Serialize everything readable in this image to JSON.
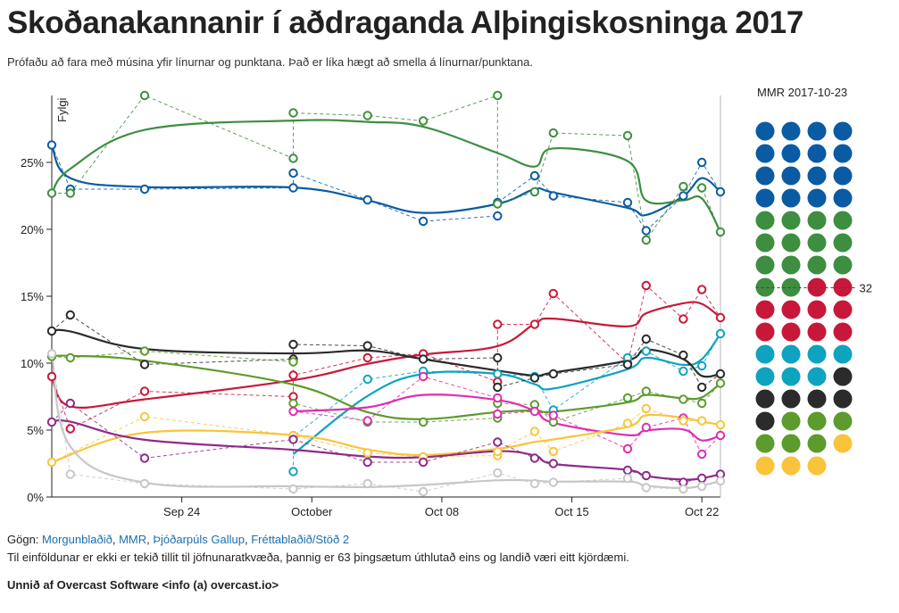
{
  "title": "Skoðanakannanir í aðdraganda Alþingiskosninga 2017",
  "subtitle": "Prófaðu að fara með músina yfir línurnar og punktana. Það er líka hægt að smella á línurnar/punktana.",
  "footer": {
    "sources_prefix": "Gögn:",
    "sources": [
      "Morgunblaðið",
      "MMR",
      "Þjóðarpúls Gallup",
      "Fréttablaðið/Stöð 2"
    ],
    "note": "Til einföldunar er ekki er tekið tillit til jöfnunaratkvæða, þannig er 63 þingsætum úthlutað eins og landið væri eitt kjördæmi.",
    "credit": "Unnið af Overcast Software <info (a) overcast.io>"
  },
  "seats_panel": {
    "label": "MMR 2017-10-23",
    "majority_label": "32",
    "seats": [
      {
        "color": "#0a5ba3",
        "count": 16
      },
      {
        "color": "#3e8e41",
        "count": 14
      },
      {
        "color": "#c8183a",
        "count": 10
      },
      {
        "color": "#0ea3bf",
        "count": 7
      },
      {
        "color": "#2b2b2b",
        "count": 6
      },
      {
        "color": "#5d9b2c",
        "count": 6
      },
      {
        "color": "#f9c43c",
        "count": 4
      }
    ]
  },
  "chart_data": {
    "type": "line",
    "title": "",
    "ylabel": "Fylgi",
    "xlabel": "",
    "ylim": [
      0,
      30
    ],
    "xlim": [
      "2017-09-17",
      "2017-10-23"
    ],
    "yticks": [
      "0%",
      "5%",
      "10%",
      "15%",
      "20%",
      "25%"
    ],
    "xticks": [
      "Sep 24",
      "October",
      "Oct 08",
      "Oct 15",
      "Oct 22"
    ],
    "marker_date": "2017-10-23",
    "series": [
      {
        "color": "#0a5ba3",
        "points": [
          [
            "2017-09-17",
            26.3
          ],
          [
            "2017-09-18",
            23.0
          ],
          [
            "2017-09-22",
            23.0
          ],
          [
            "2017-09-30",
            23.1
          ],
          [
            "2017-09-30",
            24.2
          ],
          [
            "2017-10-04",
            22.2
          ],
          [
            "2017-10-07",
            20.6
          ],
          [
            "2017-10-11",
            21.0
          ],
          [
            "2017-10-11",
            22.0
          ],
          [
            "2017-10-13",
            24.0
          ],
          [
            "2017-10-14",
            22.5
          ],
          [
            "2017-10-18",
            22.0
          ],
          [
            "2017-10-19",
            19.9
          ],
          [
            "2017-10-21",
            22.5
          ],
          [
            "2017-10-22",
            25.0
          ],
          [
            "2017-10-23",
            22.8
          ]
        ]
      },
      {
        "color": "#3e8e41",
        "points": [
          [
            "2017-09-17",
            22.7
          ],
          [
            "2017-09-18",
            22.7
          ],
          [
            "2017-09-22",
            30.0
          ],
          [
            "2017-09-30",
            25.3
          ],
          [
            "2017-09-30",
            28.7
          ],
          [
            "2017-10-04",
            28.5
          ],
          [
            "2017-10-07",
            28.1
          ],
          [
            "2017-10-11",
            30.0
          ],
          [
            "2017-10-11",
            21.9
          ],
          [
            "2017-10-13",
            22.8
          ],
          [
            "2017-10-14",
            27.2
          ],
          [
            "2017-10-18",
            27.0
          ],
          [
            "2017-10-19",
            19.2
          ],
          [
            "2017-10-21",
            23.2
          ],
          [
            "2017-10-22",
            23.1
          ],
          [
            "2017-10-23",
            19.8
          ]
        ]
      },
      {
        "color": "#c8183a",
        "points": [
          [
            "2017-09-17",
            9.0
          ],
          [
            "2017-09-18",
            5.1
          ],
          [
            "2017-09-22",
            7.9
          ],
          [
            "2017-09-30",
            7.5
          ],
          [
            "2017-09-30",
            9.1
          ],
          [
            "2017-10-04",
            10.4
          ],
          [
            "2017-10-07",
            10.7
          ],
          [
            "2017-10-11",
            8.6
          ],
          [
            "2017-10-11",
            12.9
          ],
          [
            "2017-10-13",
            12.9
          ],
          [
            "2017-10-14",
            15.2
          ],
          [
            "2017-10-18",
            10.0
          ],
          [
            "2017-10-19",
            15.8
          ],
          [
            "2017-10-21",
            13.3
          ],
          [
            "2017-10-22",
            15.5
          ],
          [
            "2017-10-23",
            13.4
          ]
        ]
      },
      {
        "color": "#0ea3bf",
        "points": [
          [
            "2017-09-30",
            1.9
          ],
          [
            "2017-09-30",
            4.5
          ],
          [
            "2017-10-04",
            8.8
          ],
          [
            "2017-10-07",
            9.4
          ],
          [
            "2017-10-11",
            9.2
          ],
          [
            "2017-10-13",
            9.0
          ],
          [
            "2017-10-14",
            6.5
          ],
          [
            "2017-10-18",
            10.4
          ],
          [
            "2017-10-19",
            10.9
          ],
          [
            "2017-10-21",
            9.4
          ],
          [
            "2017-10-22",
            9.8
          ],
          [
            "2017-10-23",
            12.2
          ]
        ]
      },
      {
        "color": "#2b2b2b",
        "points": [
          [
            "2017-09-17",
            12.4
          ],
          [
            "2017-09-18",
            13.6
          ],
          [
            "2017-09-22",
            9.9
          ],
          [
            "2017-09-30",
            10.3
          ],
          [
            "2017-09-30",
            11.4
          ],
          [
            "2017-10-04",
            11.3
          ],
          [
            "2017-10-07",
            10.3
          ],
          [
            "2017-10-11",
            10.4
          ],
          [
            "2017-10-11",
            8.2
          ],
          [
            "2017-10-13",
            8.9
          ],
          [
            "2017-10-14",
            9.2
          ],
          [
            "2017-10-18",
            9.9
          ],
          [
            "2017-10-19",
            11.8
          ],
          [
            "2017-10-21",
            10.6
          ],
          [
            "2017-10-22",
            8.2
          ],
          [
            "2017-10-23",
            9.2
          ]
        ]
      },
      {
        "color": "#5d9b2c",
        "points": [
          [
            "2017-09-17",
            10.5
          ],
          [
            "2017-09-18",
            10.4
          ],
          [
            "2017-09-22",
            10.9
          ],
          [
            "2017-09-30",
            10.1
          ],
          [
            "2017-09-30",
            7.0
          ],
          [
            "2017-10-04",
            5.6
          ],
          [
            "2017-10-07",
            5.6
          ],
          [
            "2017-10-11",
            5.9
          ],
          [
            "2017-10-11",
            7.0
          ],
          [
            "2017-10-13",
            6.9
          ],
          [
            "2017-10-14",
            5.6
          ],
          [
            "2017-10-18",
            7.4
          ],
          [
            "2017-10-19",
            7.9
          ],
          [
            "2017-10-21",
            7.3
          ],
          [
            "2017-10-22",
            7.0
          ],
          [
            "2017-10-23",
            8.5
          ]
        ]
      },
      {
        "color": "#de2db3",
        "points": [
          [
            "2017-09-30",
            6.4
          ],
          [
            "2017-10-04",
            5.7
          ],
          [
            "2017-10-07",
            9.0
          ],
          [
            "2017-10-11",
            7.4
          ],
          [
            "2017-10-11",
            6.2
          ],
          [
            "2017-10-13",
            6.4
          ],
          [
            "2017-10-14",
            6.1
          ],
          [
            "2017-10-18",
            3.6
          ],
          [
            "2017-10-19",
            5.2
          ],
          [
            "2017-10-21",
            5.9
          ],
          [
            "2017-10-22",
            3.2
          ],
          [
            "2017-10-23",
            4.6
          ]
        ]
      },
      {
        "color": "#f9c43c",
        "points": [
          [
            "2017-09-17",
            2.6
          ],
          [
            "2017-09-22",
            6.0
          ],
          [
            "2017-09-30",
            4.6
          ],
          [
            "2017-10-04",
            3.3
          ],
          [
            "2017-10-07",
            3.0
          ],
          [
            "2017-10-11",
            3.1
          ],
          [
            "2017-10-11",
            3.4
          ],
          [
            "2017-10-13",
            4.9
          ],
          [
            "2017-10-14",
            3.4
          ],
          [
            "2017-10-18",
            5.5
          ],
          [
            "2017-10-19",
            6.6
          ],
          [
            "2017-10-21",
            5.7
          ],
          [
            "2017-10-22",
            5.7
          ],
          [
            "2017-10-23",
            5.4
          ]
        ]
      },
      {
        "color": "#8e2a8a",
        "points": [
          [
            "2017-09-17",
            5.6
          ],
          [
            "2017-09-18",
            7.0
          ],
          [
            "2017-09-22",
            2.9
          ],
          [
            "2017-09-30",
            4.3
          ],
          [
            "2017-10-04",
            2.6
          ],
          [
            "2017-10-07",
            2.6
          ],
          [
            "2017-10-11",
            4.1
          ],
          [
            "2017-10-13",
            2.9
          ],
          [
            "2017-10-14",
            2.5
          ],
          [
            "2017-10-18",
            2.0
          ],
          [
            "2017-10-19",
            1.6
          ],
          [
            "2017-10-21",
            1.1
          ],
          [
            "2017-10-22",
            1.4
          ],
          [
            "2017-10-23",
            1.7
          ]
        ]
      },
      {
        "color": "#c7c7c7",
        "points": [
          [
            "2017-09-17",
            10.7
          ],
          [
            "2017-09-18",
            1.7
          ],
          [
            "2017-09-22",
            1.0
          ],
          [
            "2017-09-30",
            0.6
          ],
          [
            "2017-10-04",
            1.0
          ],
          [
            "2017-10-07",
            0.4
          ],
          [
            "2017-10-11",
            1.8
          ],
          [
            "2017-10-13",
            1.0
          ],
          [
            "2017-10-14",
            1.1
          ],
          [
            "2017-10-18",
            1.4
          ],
          [
            "2017-10-19",
            0.7
          ],
          [
            "2017-10-21",
            0.6
          ],
          [
            "2017-10-22",
            0.8
          ],
          [
            "2017-10-23",
            1.2
          ]
        ]
      }
    ]
  }
}
